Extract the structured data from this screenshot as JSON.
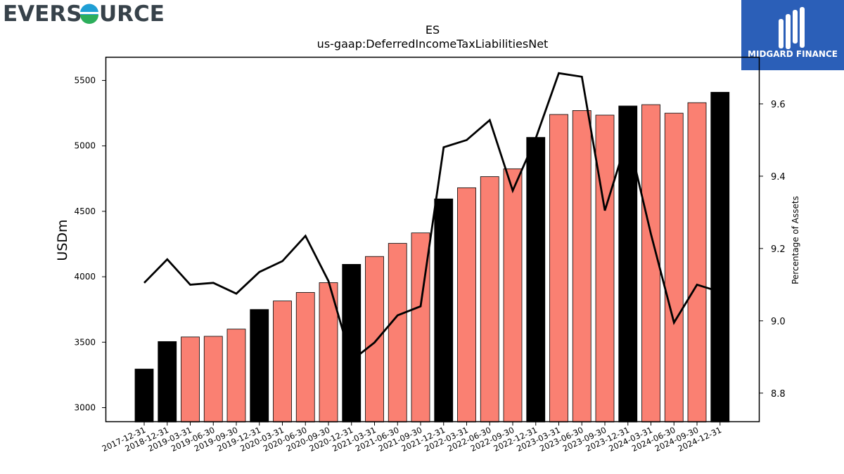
{
  "branding": {
    "left_logo_text": "EVERSOURCE",
    "right_logo_text": "MIDGARD FINANCE",
    "colors": {
      "eversource_blue": "#1f77b4",
      "eversource_green": "#2ca02c",
      "midgard_blue": "#2b5fb8"
    }
  },
  "chart_data": {
    "type": "bar",
    "title": "ES",
    "subtitle": "us-gaap:DeferredIncomeTaxLiabilitiesNet",
    "ylabel": "USDm",
    "y2label": "Percentage of Assets",
    "ylim": [
      2890,
      5680
    ],
    "y2lim": [
      8.72,
      9.73
    ],
    "yticks": [
      3000,
      3500,
      4000,
      4500,
      5000,
      5500
    ],
    "y2ticks": [
      8.8,
      9.0,
      9.2,
      9.4,
      9.6
    ],
    "categories": [
      "2017-12-31",
      "2018-12-31",
      "2019-03-31",
      "2019-06-30",
      "2019-09-30",
      "2019-12-31",
      "2020-03-31",
      "2020-06-30",
      "2020-09-30",
      "2020-12-31",
      "2021-03-31",
      "2021-06-30",
      "2021-09-30",
      "2021-12-31",
      "2022-03-31",
      "2022-06-30",
      "2022-09-30",
      "2022-12-31",
      "2023-03-31",
      "2023-06-30",
      "2023-09-30",
      "2023-12-31",
      "2024-03-31",
      "2024-06-30",
      "2024-09-30",
      "2024-12-31"
    ],
    "series": [
      {
        "kind": "bar",
        "values": [
          3295,
          3505,
          3540,
          3545,
          3600,
          3750,
          3815,
          3880,
          3955,
          4095,
          4155,
          4255,
          4335,
          4595,
          4680,
          4765,
          4825,
          5065,
          5240,
          5270,
          5235,
          5305,
          5315,
          5250,
          5330,
          5410
        ],
        "period": [
          "annual",
          "annual",
          "quarterly",
          "quarterly",
          "quarterly",
          "annual",
          "quarterly",
          "quarterly",
          "quarterly",
          "annual",
          "quarterly",
          "quarterly",
          "quarterly",
          "annual",
          "quarterly",
          "quarterly",
          "quarterly",
          "annual",
          "quarterly",
          "quarterly",
          "quarterly",
          "annual",
          "quarterly",
          "quarterly",
          "quarterly",
          "annual"
        ]
      },
      {
        "kind": "line",
        "axis": "right",
        "values": [
          9.105,
          9.17,
          9.1,
          9.105,
          9.075,
          9.135,
          9.165,
          9.235,
          9.11,
          8.89,
          8.94,
          9.015,
          9.04,
          9.48,
          9.5,
          9.555,
          9.36,
          9.505,
          9.685,
          9.675,
          9.305,
          9.51,
          9.24,
          8.995,
          9.1,
          9.08
        ]
      }
    ],
    "colors": {
      "annual": "#000000",
      "quarterly": "#fa8072",
      "line": "#000000"
    }
  }
}
